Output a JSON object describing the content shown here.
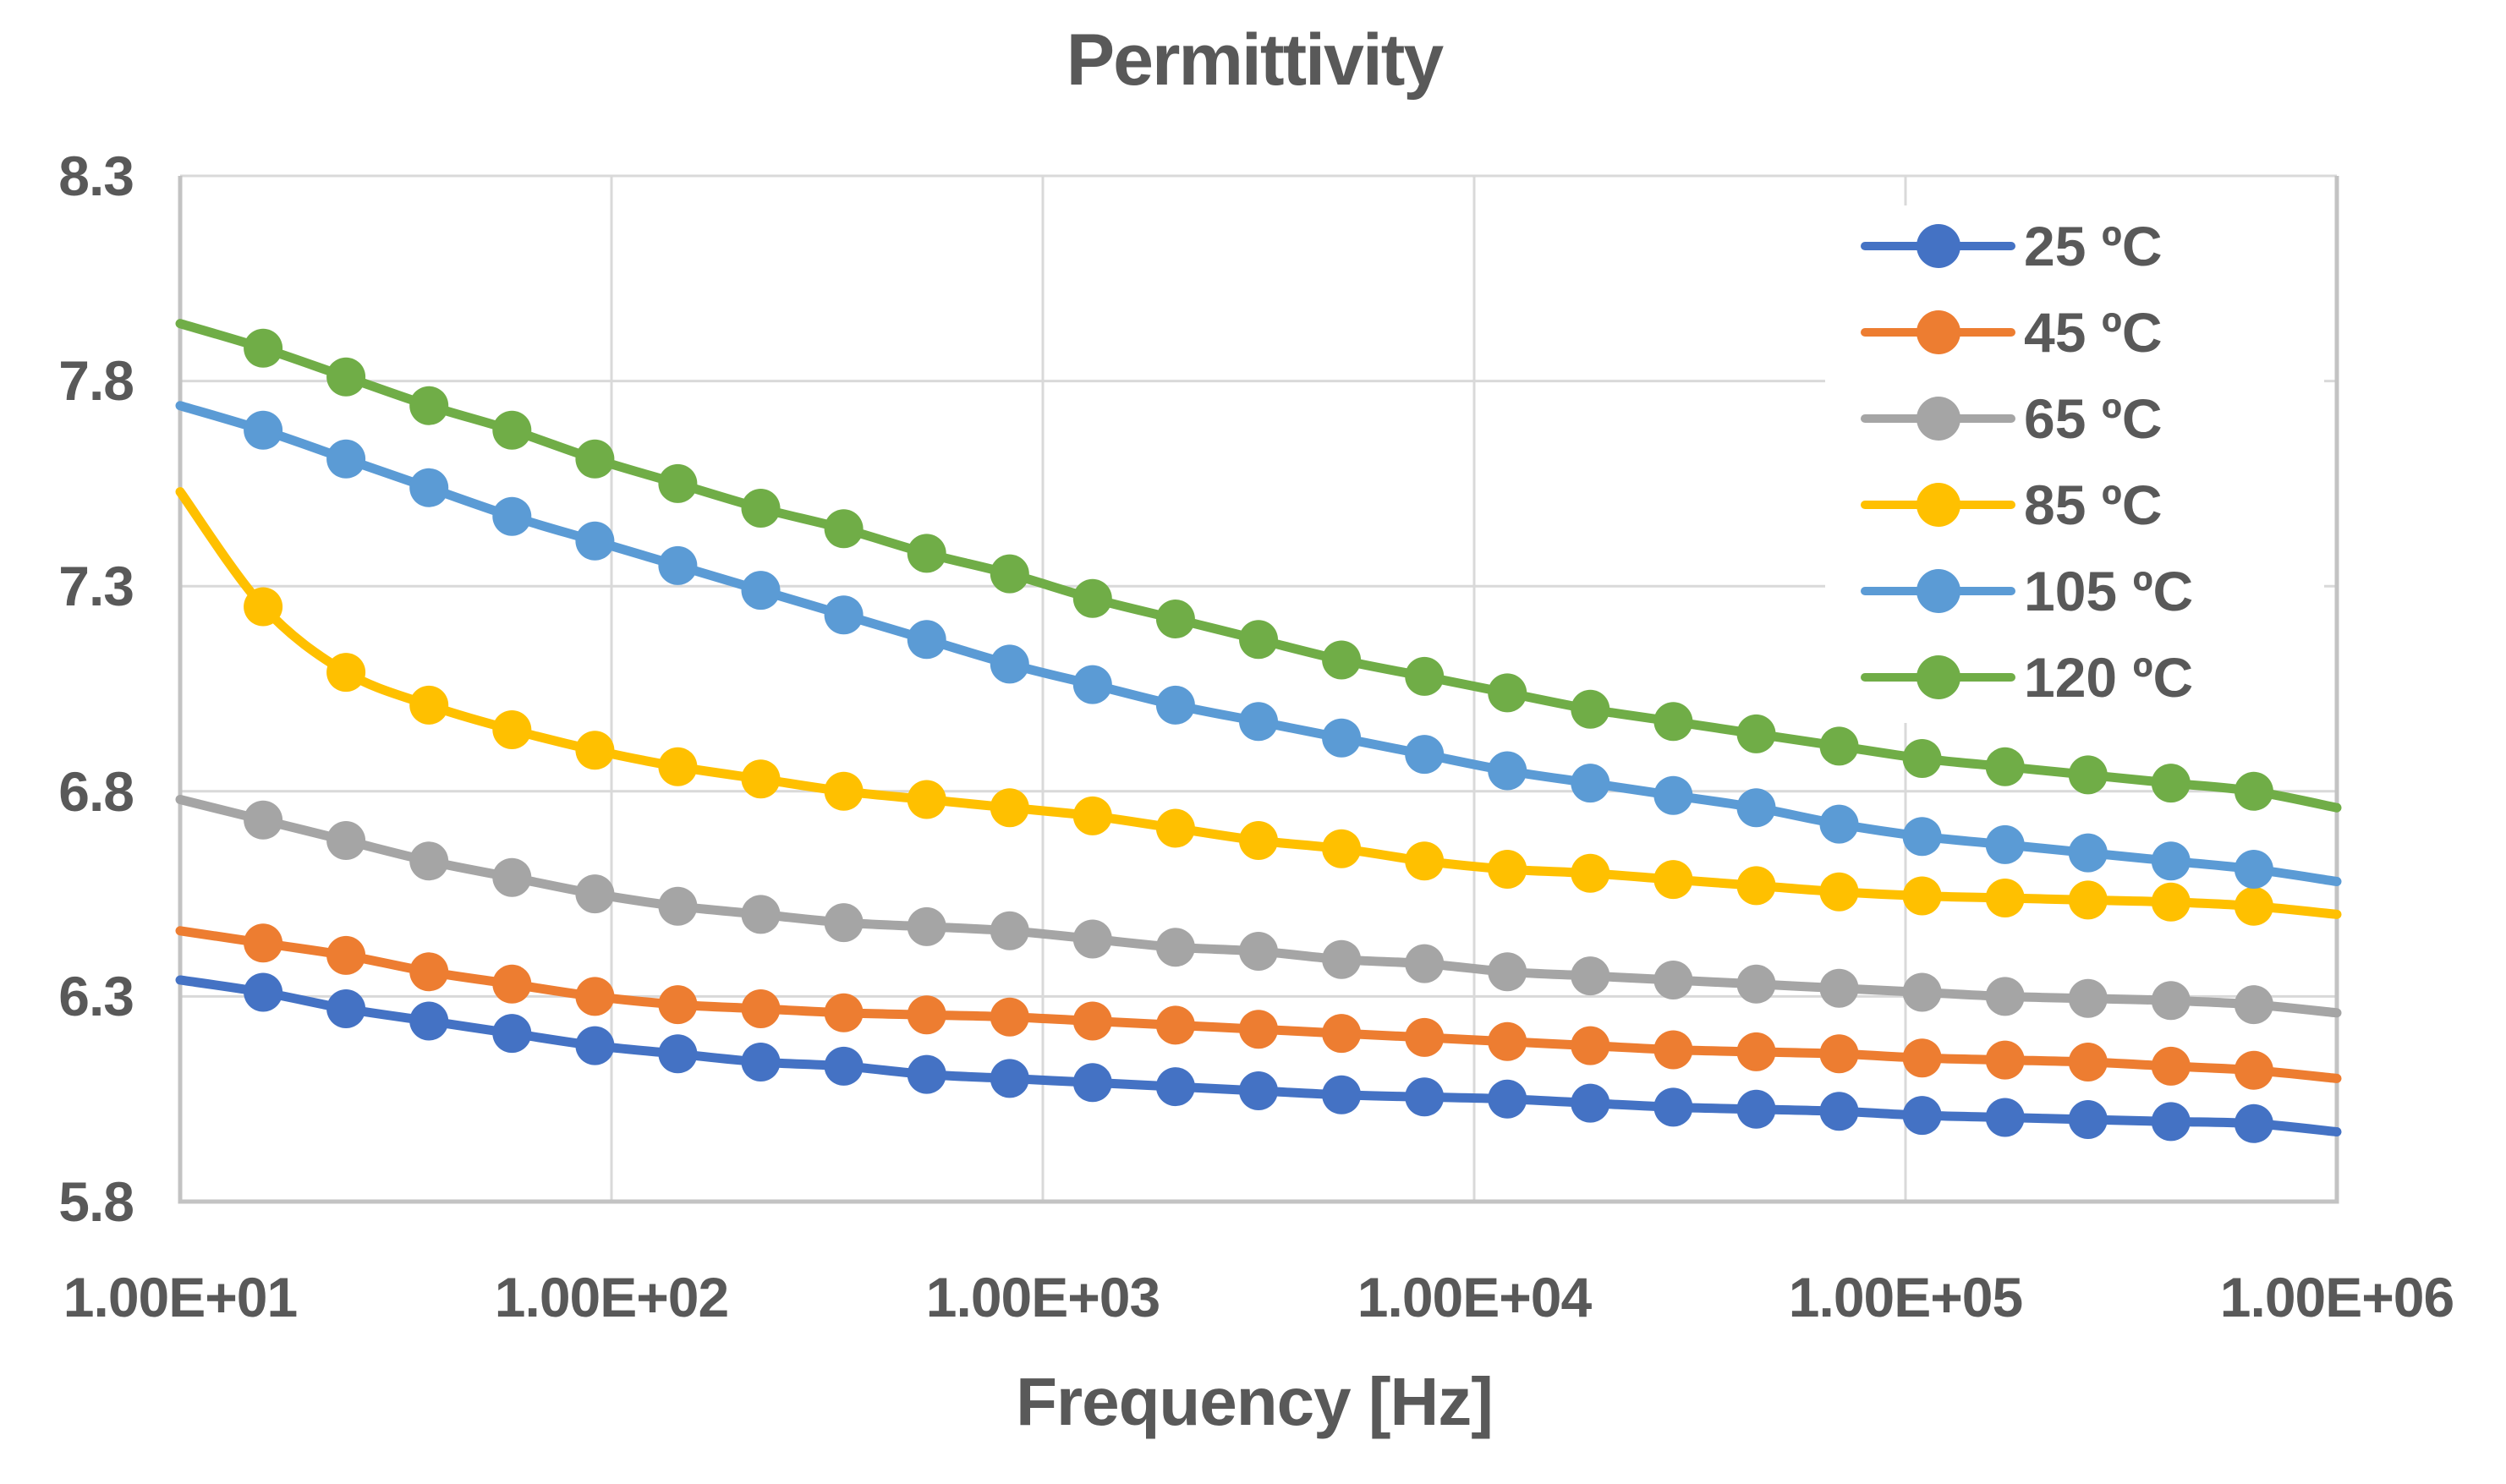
{
  "title": "Permittivity",
  "colors": {
    "text": "#595959",
    "gridline": "#D9D9D9",
    "axis_line": "#C3C3C3",
    "background": "#FFFFFF",
    "legend_fill": "#FFFFFF"
  },
  "chart_data": {
    "type": "line",
    "title": "Permittivity",
    "xlabel": "Frequency [Hz]",
    "ylabel": "",
    "x_scale": "log",
    "xlim": [
      10,
      1000000
    ],
    "ylim": [
      5.8,
      8.3
    ],
    "grid": true,
    "legend_position": "inside-top-right",
    "marker": "circle",
    "smoothed": true,
    "x_tick_labels": [
      "1.00E+01",
      "1.00E+02",
      "1.00E+03",
      "1.00E+04",
      "1.00E+05",
      "1.00E+06"
    ],
    "y_tick_labels": [
      "8.3",
      "7.8",
      "7.3",
      "6.8",
      "6.3",
      "5.8"
    ],
    "x": [
      10,
      15.57,
      24.24,
      37.75,
      58.78,
      91.52,
      142.5,
      221.9,
      345.5,
      538.0,
      837.7,
      1304,
      2031,
      3162,
      4924,
      7667,
      11938,
      18588,
      28943,
      45070,
      70170,
      109260,
      170125,
      264900,
      412463,
      642234,
      1000000
    ],
    "series": [
      {
        "name": "25 ºC",
        "color": "#4472C4",
        "values": [
          6.34,
          6.31,
          6.27,
          6.24,
          6.21,
          6.18,
          6.16,
          6.14,
          6.13,
          6.11,
          6.1,
          6.09,
          6.08,
          6.07,
          6.06,
          6.055,
          6.05,
          6.04,
          6.03,
          6.025,
          6.02,
          6.01,
          6.005,
          6.0,
          5.995,
          5.99,
          5.97
        ]
      },
      {
        "name": "45 ºC",
        "color": "#ED7D31",
        "values": [
          6.46,
          6.43,
          6.4,
          6.36,
          6.33,
          6.3,
          6.28,
          6.27,
          6.26,
          6.255,
          6.25,
          6.24,
          6.23,
          6.22,
          6.21,
          6.2,
          6.19,
          6.18,
          6.17,
          6.165,
          6.16,
          6.15,
          6.145,
          6.14,
          6.13,
          6.12,
          6.1
        ]
      },
      {
        "name": "65 ºC",
        "color": "#A5A5A5",
        "values": [
          6.78,
          6.73,
          6.68,
          6.63,
          6.59,
          6.55,
          6.52,
          6.5,
          6.48,
          6.47,
          6.46,
          6.44,
          6.42,
          6.41,
          6.39,
          6.38,
          6.36,
          6.35,
          6.34,
          6.33,
          6.32,
          6.31,
          6.3,
          6.295,
          6.29,
          6.28,
          6.26
        ]
      },
      {
        "name": "85 ºC",
        "color": "#FFC000",
        "values": [
          7.53,
          7.25,
          7.09,
          7.01,
          6.95,
          6.9,
          6.86,
          6.83,
          6.8,
          6.78,
          6.76,
          6.74,
          6.71,
          6.68,
          6.66,
          6.63,
          6.61,
          6.6,
          6.585,
          6.57,
          6.555,
          6.545,
          6.54,
          6.535,
          6.53,
          6.52,
          6.5
        ]
      },
      {
        "name": "105 ºC",
        "color": "#5B9BD5",
        "values": [
          7.74,
          7.68,
          7.61,
          7.54,
          7.47,
          7.41,
          7.35,
          7.29,
          7.23,
          7.17,
          7.11,
          7.06,
          7.01,
          6.97,
          6.93,
          6.89,
          6.85,
          6.82,
          6.79,
          6.76,
          6.72,
          6.69,
          6.67,
          6.65,
          6.63,
          6.61,
          6.58
        ]
      },
      {
        "name": "120 ºC",
        "color": "#70AD47",
        "values": [
          7.94,
          7.88,
          7.81,
          7.74,
          7.68,
          7.61,
          7.55,
          7.49,
          7.44,
          7.38,
          7.33,
          7.27,
          7.22,
          7.17,
          7.12,
          7.08,
          7.04,
          7.0,
          6.97,
          6.94,
          6.91,
          6.88,
          6.86,
          6.84,
          6.82,
          6.8,
          6.76
        ]
      }
    ]
  }
}
